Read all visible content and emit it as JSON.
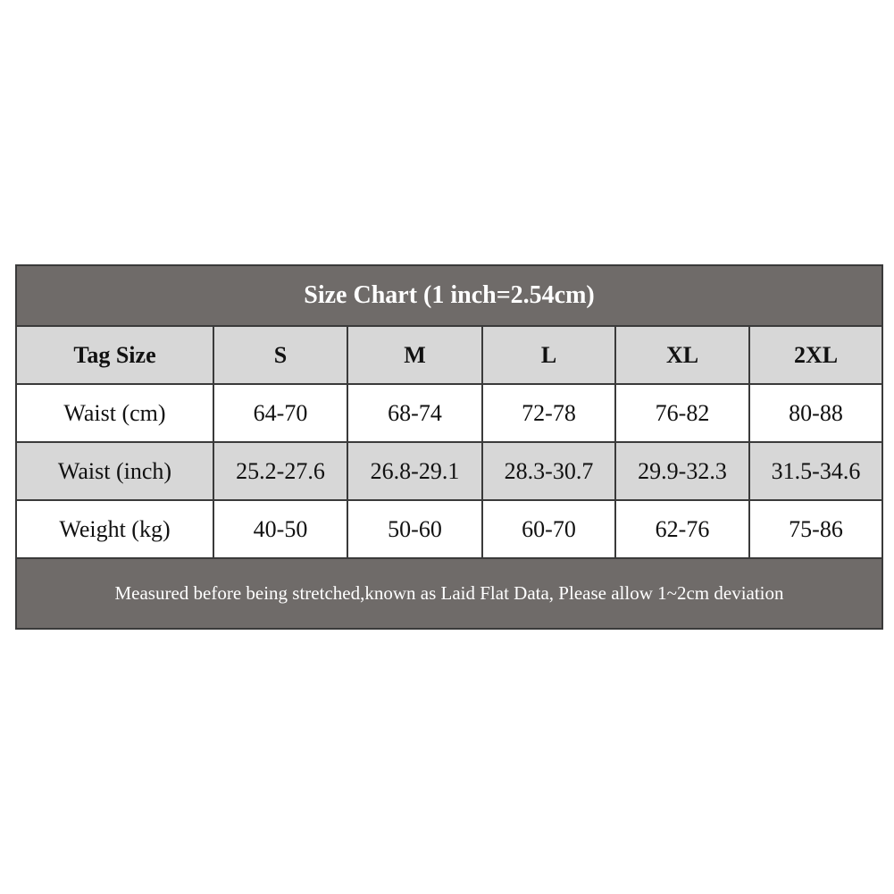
{
  "title": "Size Chart (1 inch=2.54cm)",
  "header": [
    "Tag Size",
    "S",
    "M",
    "L",
    "XL",
    "2XL"
  ],
  "rows": [
    [
      "Waist (cm)",
      "64-70",
      "68-74",
      "72-78",
      "76-82",
      "80-88"
    ],
    [
      "Waist (inch)",
      "25.2-27.6",
      "26.8-29.1",
      "28.3-30.7",
      "29.9-32.3",
      "31.5-34.6"
    ],
    [
      "Weight (kg)",
      "40-50",
      "50-60",
      "60-70",
      "62-76",
      "75-86"
    ]
  ],
  "footer": "Measured before being stretched,known as Laid Flat Data, Please allow 1~2cm deviation",
  "colors": {
    "title_bg": "#6f6b69",
    "header_bg": "#d7d7d7",
    "border": "#3a3a3a"
  }
}
